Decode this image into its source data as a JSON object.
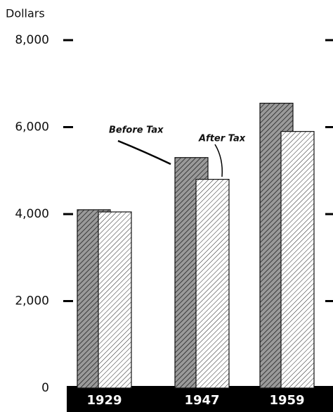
{
  "chart_data": {
    "type": "bar",
    "ylabel": "Dollars",
    "categories": [
      "1929",
      "1947",
      "1959"
    ],
    "series": [
      {
        "name": "Before Tax",
        "color": "#9a9a9a",
        "values": [
          4100,
          5300,
          6550
        ]
      },
      {
        "name": "After Tax",
        "color": "#ffffff",
        "values": [
          4050,
          4800,
          5900
        ]
      }
    ],
    "ylim": [
      0,
      8000
    ],
    "yticks": [
      0,
      {
        "value": 2000,
        "label": "2,000"
      },
      {
        "value": 4000,
        "label": "4,000"
      },
      {
        "value": 6000,
        "label": "6,000"
      },
      {
        "value": 8000,
        "label": "8,000"
      }
    ]
  }
}
